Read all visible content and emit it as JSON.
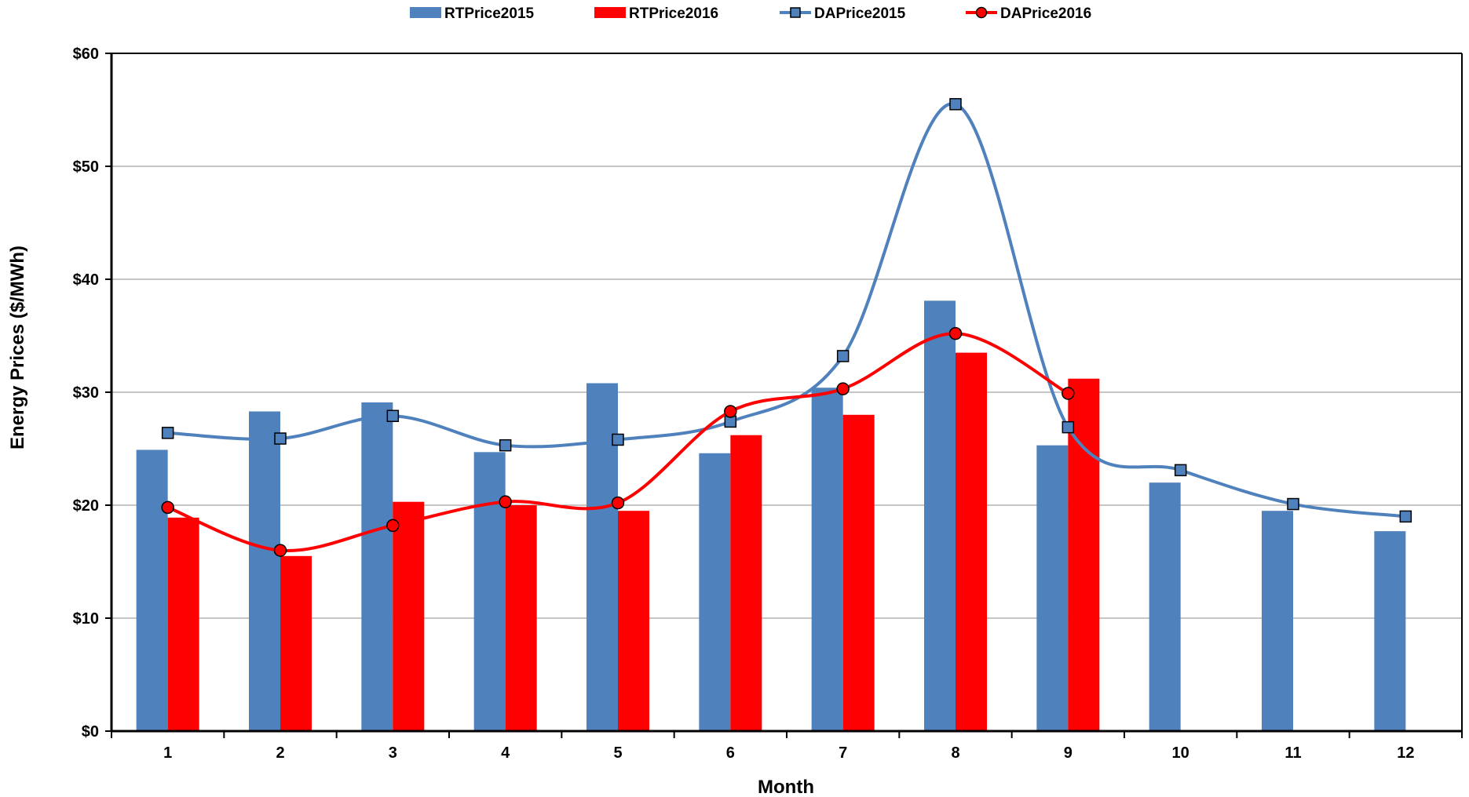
{
  "chart_data": {
    "type": "bar",
    "title": "",
    "xlabel": "Month",
    "ylabel": "Energy Prices ($/MWh)",
    "ylim": [
      0,
      60
    ],
    "y_ticks": [
      0,
      10,
      20,
      30,
      40,
      50,
      60
    ],
    "y_tick_labels": [
      "$0",
      "$10",
      "$20",
      "$30",
      "$40",
      "$50",
      "$60"
    ],
    "categories": [
      "1",
      "2",
      "3",
      "4",
      "5",
      "6",
      "7",
      "8",
      "9",
      "10",
      "11",
      "12"
    ],
    "grid": "horizontal",
    "legend_position": "top",
    "series": [
      {
        "name": "RTPrice2015",
        "kind": "bar",
        "color": "#4F81BD",
        "values": [
          24.9,
          28.3,
          29.1,
          24.7,
          30.8,
          24.6,
          30.4,
          38.1,
          25.3,
          22.0,
          19.5,
          17.7
        ]
      },
      {
        "name": "RTPrice2016",
        "kind": "bar",
        "color": "#FF0000",
        "values": [
          18.9,
          15.5,
          20.3,
          20.0,
          19.5,
          26.2,
          28.0,
          33.5,
          31.2,
          null,
          null,
          null
        ]
      },
      {
        "name": "DAPrice2015",
        "kind": "line",
        "marker": "square",
        "color": "#4F81BD",
        "values": [
          26.4,
          25.9,
          27.9,
          25.3,
          25.8,
          27.4,
          33.2,
          55.5,
          26.9,
          23.1,
          20.1,
          19.0
        ]
      },
      {
        "name": "DAPrice2016",
        "kind": "line",
        "marker": "circle",
        "color": "#FF0000",
        "values": [
          19.8,
          16.0,
          18.2,
          20.3,
          20.2,
          28.3,
          30.3,
          35.2,
          29.9,
          null,
          null,
          null
        ]
      }
    ]
  }
}
